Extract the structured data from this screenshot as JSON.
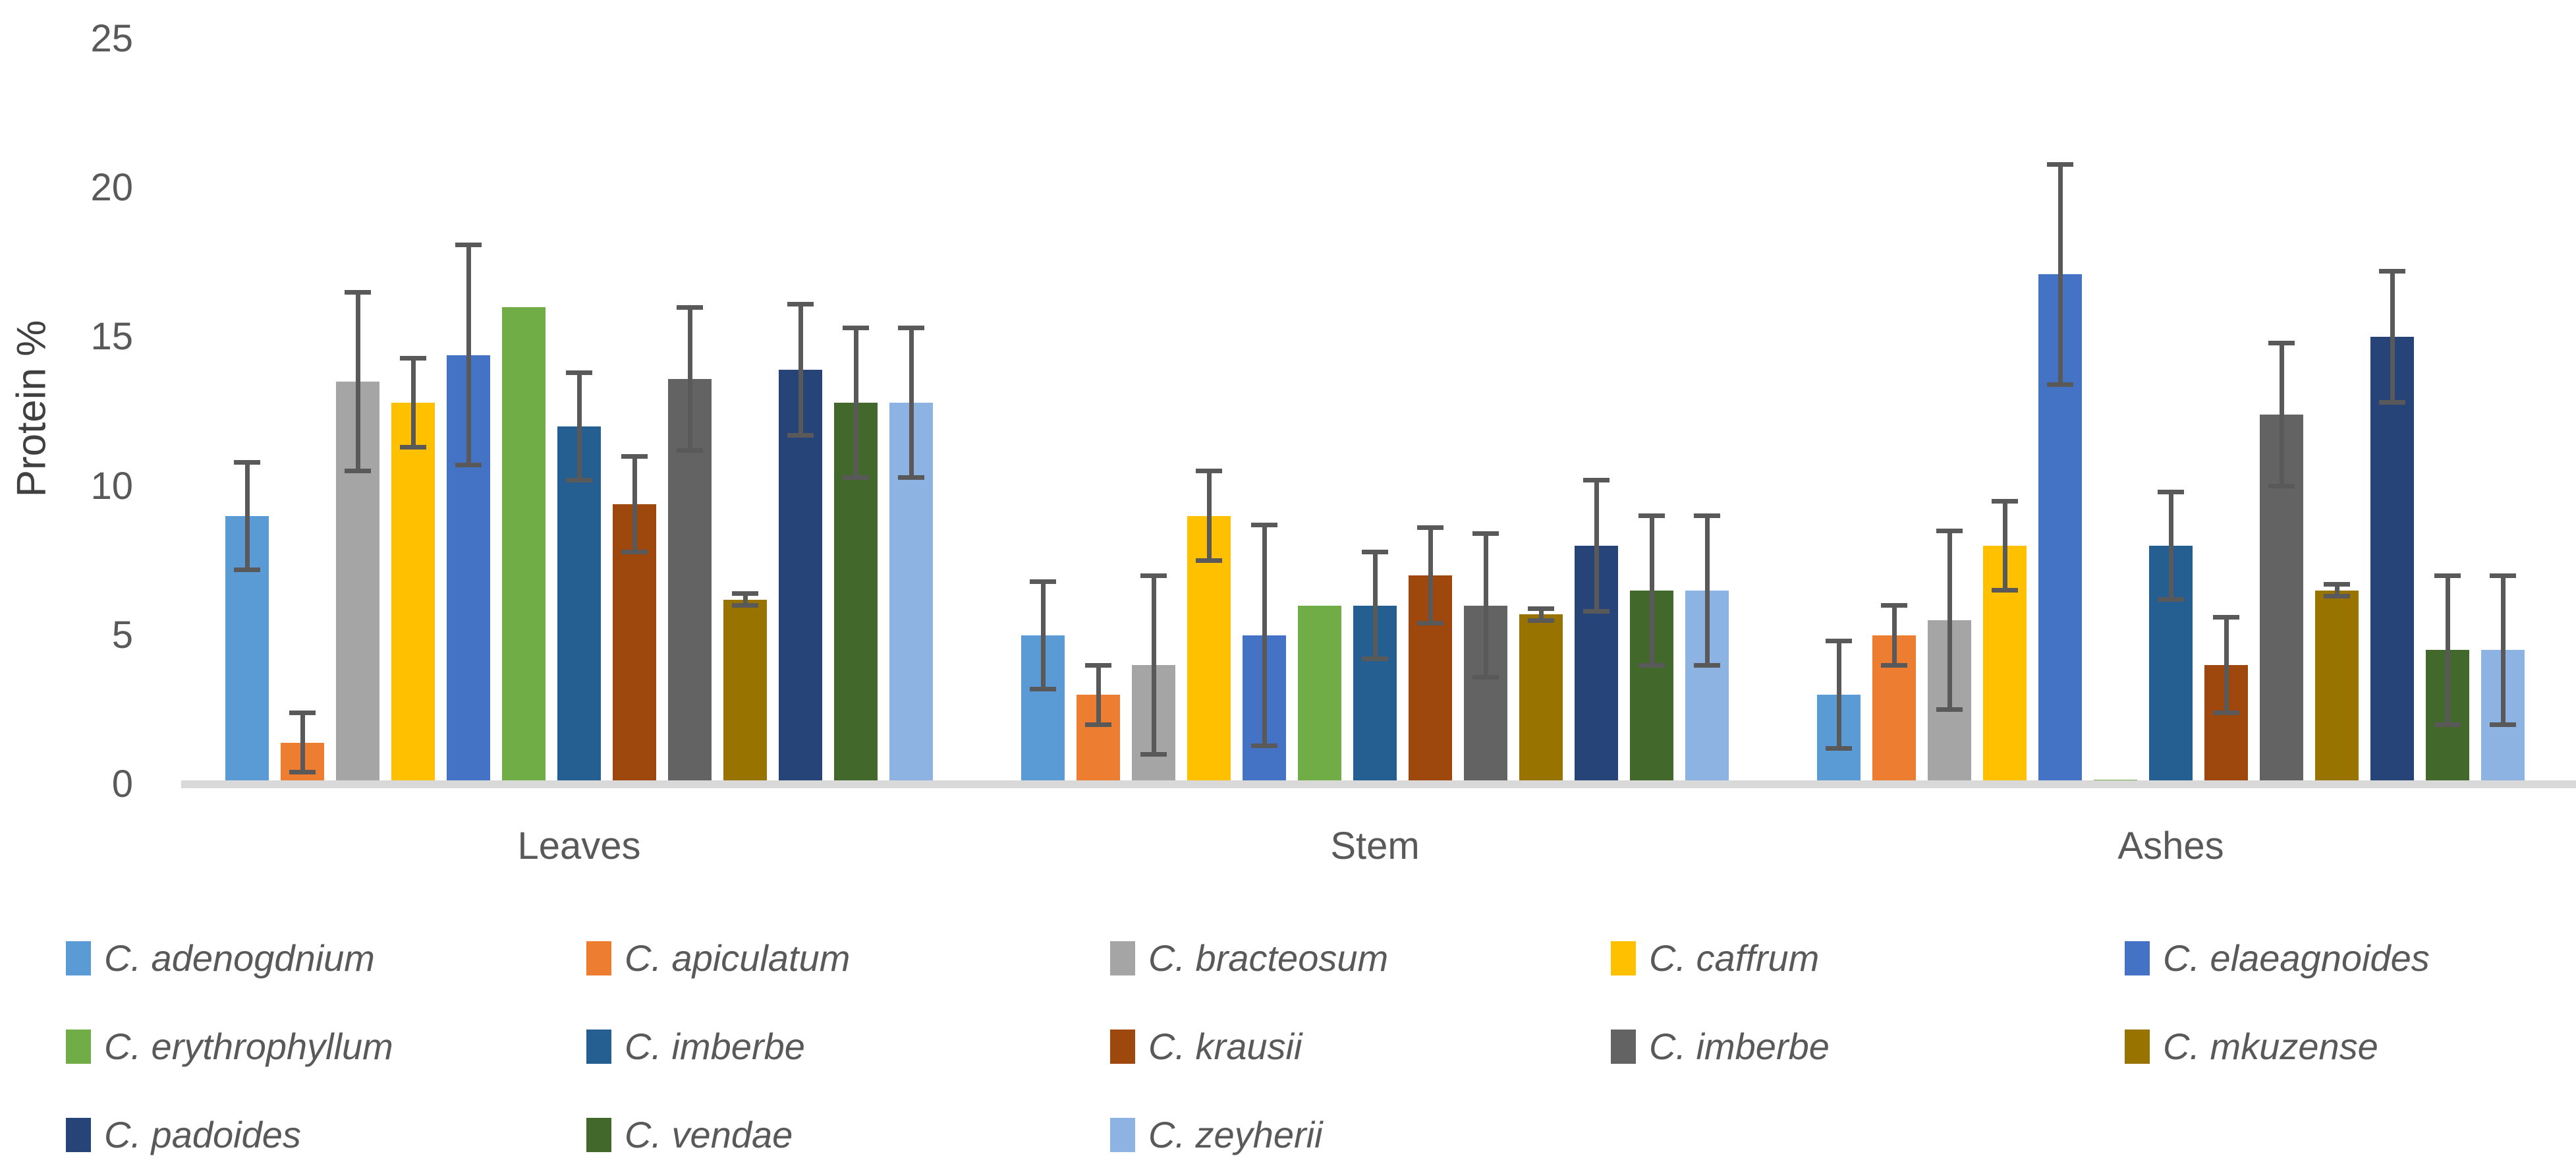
{
  "chart_data": {
    "type": "bar",
    "title": "",
    "ylabel": "Protein %",
    "xlabel": "",
    "categories": [
      "Leaves",
      "Stem",
      "Ashes"
    ],
    "yticks": [
      0,
      5,
      10,
      15,
      20,
      25
    ],
    "ylim": [
      0,
      25
    ],
    "grid": false,
    "legend_position": "bottom",
    "error_bars": true,
    "axis_line_color": "#D9D9D9",
    "error_bar_color": "#595959",
    "text_color": "#595959",
    "series": [
      {
        "name": "C. adenogdnium",
        "color": "#5B9BD5",
        "values": [
          9.0,
          5.0,
          3.0
        ],
        "errors": [
          1.8,
          1.8,
          1.8
        ]
      },
      {
        "name": "C. apiculatum",
        "color": "#ED7D31",
        "values": [
          1.4,
          3.0,
          5.0
        ],
        "errors": [
          1.0,
          1.0,
          1.0
        ]
      },
      {
        "name": "C. bracteosum",
        "color": "#A5A5A5",
        "values": [
          13.5,
          4.0,
          5.5
        ],
        "errors": [
          3.0,
          3.0,
          3.0
        ]
      },
      {
        "name": "C. caffrum",
        "color": "#FFC000",
        "values": [
          12.8,
          9.0,
          8.0
        ],
        "errors": [
          1.5,
          1.5,
          1.5
        ]
      },
      {
        "name": "C. elaeagnoides",
        "color": "#4472C4",
        "values": [
          14.4,
          5.0,
          17.1
        ],
        "errors": [
          3.7,
          3.7,
          3.7
        ]
      },
      {
        "name": "C. erythrophyllum",
        "color": "#70AD47",
        "values": [
          16.0,
          6.0,
          0.15
        ],
        "errors": [
          0,
          0,
          0
        ]
      },
      {
        "name": "C. imberbe",
        "color": "#255E91",
        "values": [
          12.0,
          6.0,
          8.0
        ],
        "errors": [
          1.8,
          1.8,
          1.8
        ]
      },
      {
        "name": "C. krausii",
        "color": "#9E480E",
        "values": [
          9.4,
          7.0,
          4.0
        ],
        "errors": [
          1.6,
          1.6,
          1.6
        ]
      },
      {
        "name": "C. imberbe",
        "color": "#636363",
        "values": [
          13.6,
          6.0,
          12.4
        ],
        "errors": [
          2.4,
          2.4,
          2.4
        ]
      },
      {
        "name": "C. mkuzense",
        "color": "#997300",
        "values": [
          6.2,
          5.7,
          6.5
        ],
        "errors": [
          0.2,
          0.2,
          0.2
        ]
      },
      {
        "name": "C. padoides",
        "color": "#264478",
        "values": [
          13.9,
          8.0,
          15.0
        ],
        "errors": [
          2.2,
          2.2,
          2.2
        ]
      },
      {
        "name": "C. vendae",
        "color": "#43682B",
        "values": [
          12.8,
          6.5,
          4.5
        ],
        "errors": [
          2.5,
          2.5,
          2.5
        ]
      },
      {
        "name": "C. zeyherii",
        "color": "#8DB3E2",
        "values": [
          12.8,
          6.5,
          4.5
        ],
        "errors": [
          2.5,
          2.5,
          2.5
        ]
      }
    ]
  }
}
